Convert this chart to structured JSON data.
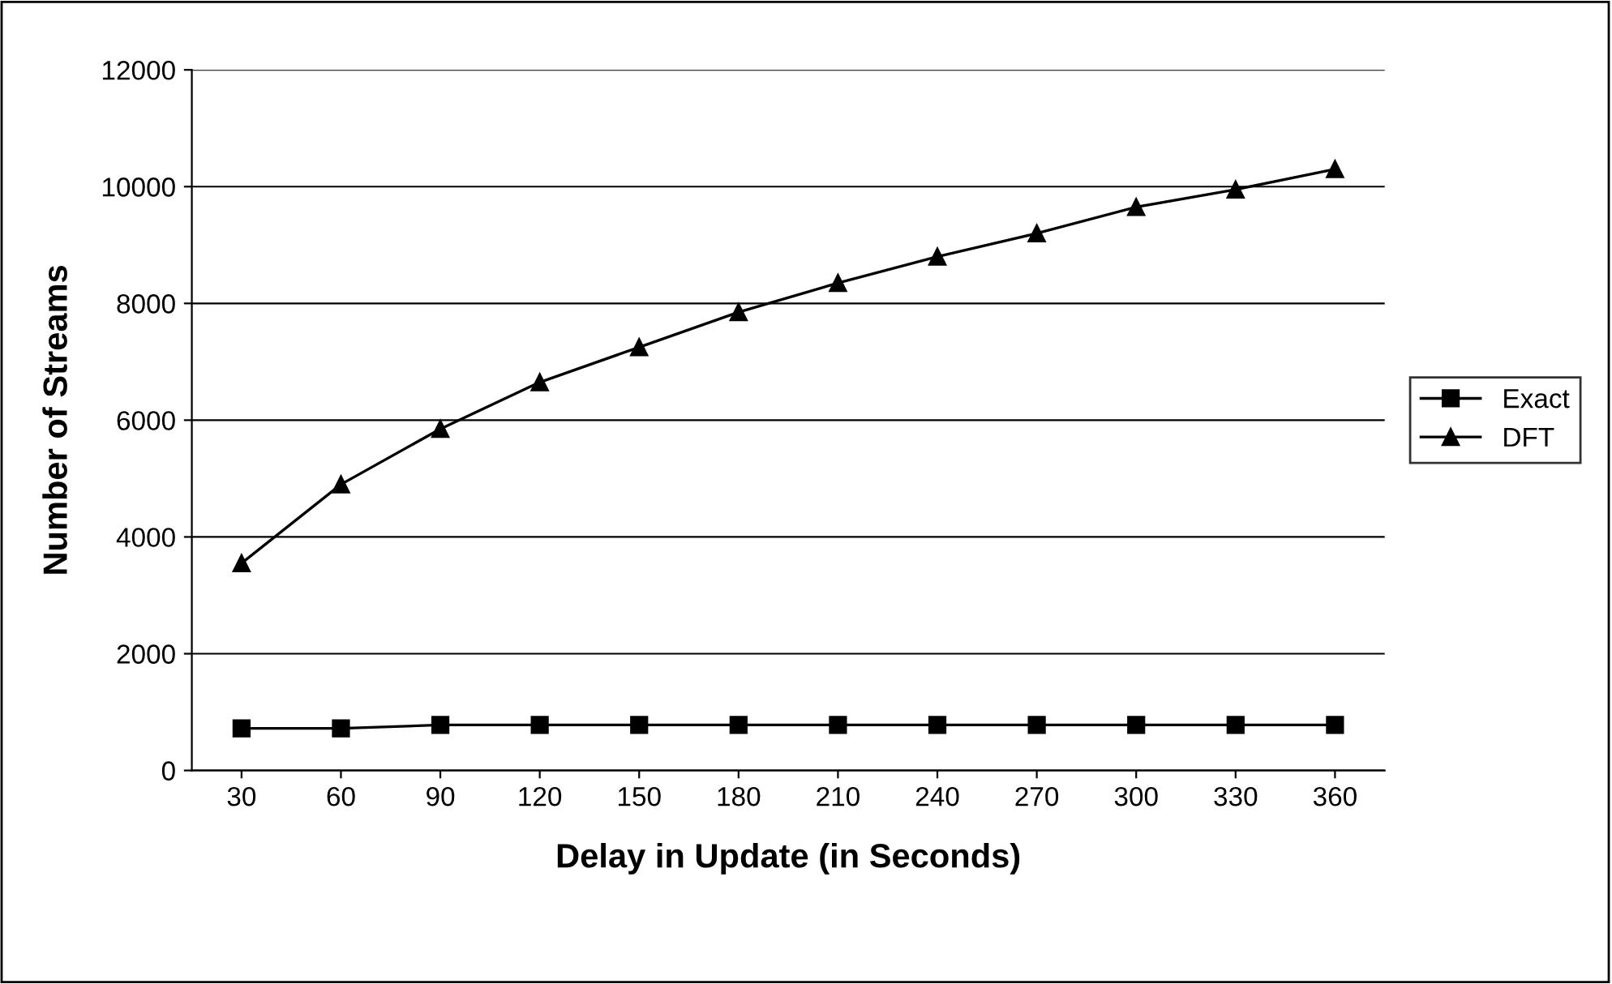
{
  "chart_data": {
    "type": "line",
    "xlabel": "Delay in Update (in Seconds)",
    "ylabel": "Number of Streams",
    "categories": [
      "30",
      "60",
      "90",
      "120",
      "150",
      "180",
      "210",
      "240",
      "270",
      "300",
      "330",
      "360"
    ],
    "series": [
      {
        "name": "Exact",
        "color": "#000000",
        "marker": "square",
        "values": [
          720,
          720,
          780,
          780,
          780,
          780,
          780,
          780,
          780,
          780,
          780,
          780
        ]
      },
      {
        "name": "DFT",
        "color": "#000000",
        "marker": "triangle",
        "values": [
          3550,
          4900,
          5850,
          6650,
          7250,
          7850,
          8350,
          8800,
          9200,
          9650,
          9950,
          10300
        ]
      }
    ],
    "ylim": [
      0,
      12000
    ],
    "yticks": [
      0,
      2000,
      4000,
      6000,
      8000,
      10000,
      12000
    ],
    "grid": "y",
    "legend": "right",
    "line_style": "solid"
  }
}
